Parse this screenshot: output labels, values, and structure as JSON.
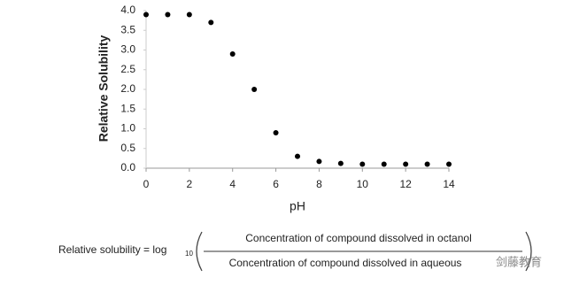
{
  "chart_data": {
    "type": "scatter",
    "xlabel": "pH",
    "ylabel": "Relative Solubility",
    "x": [
      0,
      1,
      2,
      3,
      4,
      5,
      6,
      7,
      8,
      9,
      10,
      11,
      12,
      13,
      14
    ],
    "values": [
      3.9,
      3.9,
      3.9,
      3.7,
      2.9,
      2.0,
      0.9,
      0.3,
      0.17,
      0.12,
      0.1,
      0.1,
      0.1,
      0.1,
      0.1
    ],
    "color": "#000000",
    "xlim": [
      0,
      14
    ],
    "xticks": [
      0,
      2,
      4,
      6,
      8,
      10,
      12,
      14
    ],
    "ylim": [
      0,
      4
    ],
    "yticks": [
      {
        "value": 0,
        "label": "0.0"
      },
      {
        "value": 0.5,
        "label": "0.5"
      },
      {
        "value": 1,
        "label": "1.0"
      },
      {
        "value": 1.5,
        "label": "1.5"
      },
      {
        "value": 2,
        "label": "2.0"
      },
      {
        "value": 2.5,
        "label": "2.5"
      },
      {
        "value": 3,
        "label": "3.0"
      },
      {
        "value": 3.5,
        "label": "3.5"
      },
      {
        "value": 4,
        "label": "4.0"
      }
    ],
    "grid": false
  },
  "formula": {
    "lhs": "Relative solubility = log",
    "base": "10",
    "numerator": "Concentration of compound  dissolved in octanol",
    "denominator": "Concentration of compound  dissolved in aqueous",
    "watermark": "剑藤教育"
  }
}
